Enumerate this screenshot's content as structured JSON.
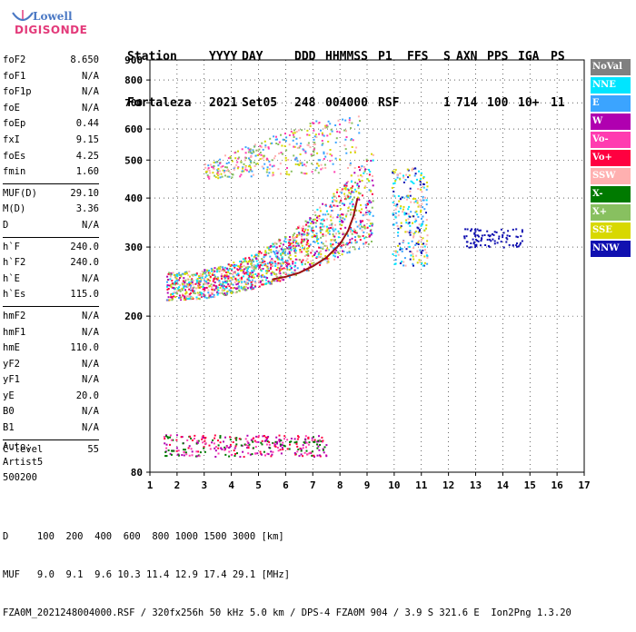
{
  "logo": {
    "line1": "Lowell",
    "line2": "DIGISONDE"
  },
  "header": {
    "labels": [
      "Station",
      "YYYY",
      "DAY",
      "DDD",
      "HHMMSS",
      "P1",
      "FFS",
      "S",
      "AXN",
      "PPS",
      "IGA",
      "PS"
    ],
    "values": [
      "Fortaleza",
      "2021",
      "Set05",
      "248",
      "004000",
      "RSF",
      "",
      "1",
      "714",
      "100",
      "10+",
      "11"
    ]
  },
  "params": {
    "group1": [
      {
        "name": "foF2",
        "value": "8.650"
      },
      {
        "name": "foF1",
        "value": "N/A"
      },
      {
        "name": "foF1p",
        "value": "N/A"
      },
      {
        "name": "foE",
        "value": "N/A"
      },
      {
        "name": "foEp",
        "value": "0.44"
      },
      {
        "name": "fxI",
        "value": "9.15"
      },
      {
        "name": "foEs",
        "value": "4.25"
      },
      {
        "name": "fmin",
        "value": "1.60"
      }
    ],
    "group2": [
      {
        "name": "MUF(D)",
        "value": "29.10"
      },
      {
        "name": "M(D)",
        "value": "3.36"
      },
      {
        "name": "D",
        "value": "N/A"
      }
    ],
    "group3": [
      {
        "name": "h`F",
        "value": "240.0"
      },
      {
        "name": "h`F2",
        "value": "240.0"
      },
      {
        "name": "h`E",
        "value": "N/A"
      },
      {
        "name": "h`Es",
        "value": "115.0"
      }
    ],
    "group4": [
      {
        "name": "hmF2",
        "value": "N/A"
      },
      {
        "name": "hmF1",
        "value": "N/A"
      },
      {
        "name": "hmE",
        "value": "110.0"
      },
      {
        "name": "yF2",
        "value": "N/A"
      },
      {
        "name": "yF1",
        "value": "N/A"
      },
      {
        "name": "yE",
        "value": "20.0"
      },
      {
        "name": "B0",
        "value": "N/A"
      },
      {
        "name": "B1",
        "value": "N/A"
      }
    ],
    "group5": [
      {
        "name": "C-level",
        "value": "55"
      }
    ],
    "auto": [
      "Auto:",
      "Artist5",
      "500200"
    ]
  },
  "legend": [
    {
      "label": "NoVal",
      "color": "#808080"
    },
    {
      "label": "NNE",
      "color": "#00e5ff"
    },
    {
      "label": "E",
      "color": "#3ba4ff"
    },
    {
      "label": "W",
      "color": "#b000b0"
    },
    {
      "label": "Vo-",
      "color": "#ff3cb0"
    },
    {
      "label": "Vo+",
      "color": "#ff0040"
    },
    {
      "label": "SSW",
      "color": "#ffb0b0"
    },
    {
      "label": "X-",
      "color": "#007a00"
    },
    {
      "label": "X+",
      "color": "#88c060"
    },
    {
      "label": "SSE",
      "color": "#d8d800"
    },
    {
      "label": "NNW",
      "color": "#1010b0"
    }
  ],
  "footer": {
    "line1": "D     100  200  400  600  800 1000 1500 3000 [km]",
    "line2": "MUF   9.0  9.1  9.6 10.3 11.4 12.9 17.4 29.1 [MHz]",
    "line3": "FZA0M_2021248004000.RSF / 320fx256h 50 kHz 5.0 km / DPS-4 FZA0M 904 / 3.9 S 321.6 E  Ion2Png 1.3.20"
  },
  "chart_data": {
    "type": "scatter",
    "title": "",
    "xlabel": "",
    "ylabel": "",
    "xlim": [
      1,
      17
    ],
    "ylim": [
      80,
      900
    ],
    "x_ticks": [
      "1",
      "2",
      "3",
      "4",
      "5",
      "6",
      "7",
      "8",
      "9",
      "10",
      "11",
      "12",
      "13",
      "14",
      "15",
      "16",
      "17"
    ],
    "y_ticks": [
      "80",
      "200",
      "300",
      "400",
      "500",
      "600",
      "700",
      "800",
      "900"
    ],
    "y_scale": "log",
    "grid": true,
    "legend_position": "right",
    "trace_color": "#9a1010",
    "trace": [
      [
        5.5,
        248
      ],
      [
        6,
        252
      ],
      [
        6.5,
        258
      ],
      [
        7,
        268
      ],
      [
        7.5,
        282
      ],
      [
        8,
        305
      ],
      [
        8.3,
        330
      ],
      [
        8.5,
        360
      ],
      [
        8.65,
        400
      ]
    ],
    "series": [
      {
        "name": "Es",
        "cluster": {
          "x": [
            1.5,
            7.5
          ],
          "y": [
            88,
            100
          ]
        },
        "colors": [
          "#b000b0",
          "#ff3cb0",
          "#007a00",
          "#ff0040"
        ]
      },
      {
        "name": "F",
        "cluster": {
          "x": [
            1.6,
            9.2
          ],
          "y": [
            220,
            420
          ]
        },
        "colors": [
          "#3ba4ff",
          "#00e5ff",
          "#ff0040",
          "#b000b0",
          "#d8d800",
          "#88c060",
          "#ffb0b0"
        ]
      },
      {
        "name": "2F",
        "cluster": {
          "x": [
            3,
            8.7
          ],
          "y": [
            440,
            660
          ]
        },
        "colors": [
          "#3ba4ff",
          "#d8d800",
          "#ffb0b0",
          "#88c060",
          "#ff3cb0"
        ]
      },
      {
        "name": "NNW",
        "cluster": {
          "x": [
            12.5,
            14.7
          ],
          "y": [
            300,
            335
          ]
        },
        "colors": [
          "#1010b0"
        ]
      },
      {
        "name": "spread",
        "cluster": {
          "x": [
            9.9,
            11.2
          ],
          "y": [
            270,
            480
          ]
        },
        "colors": [
          "#d8d800",
          "#3ba4ff",
          "#00e5ff",
          "#ffb0b0",
          "#1010b0"
        ]
      }
    ]
  }
}
